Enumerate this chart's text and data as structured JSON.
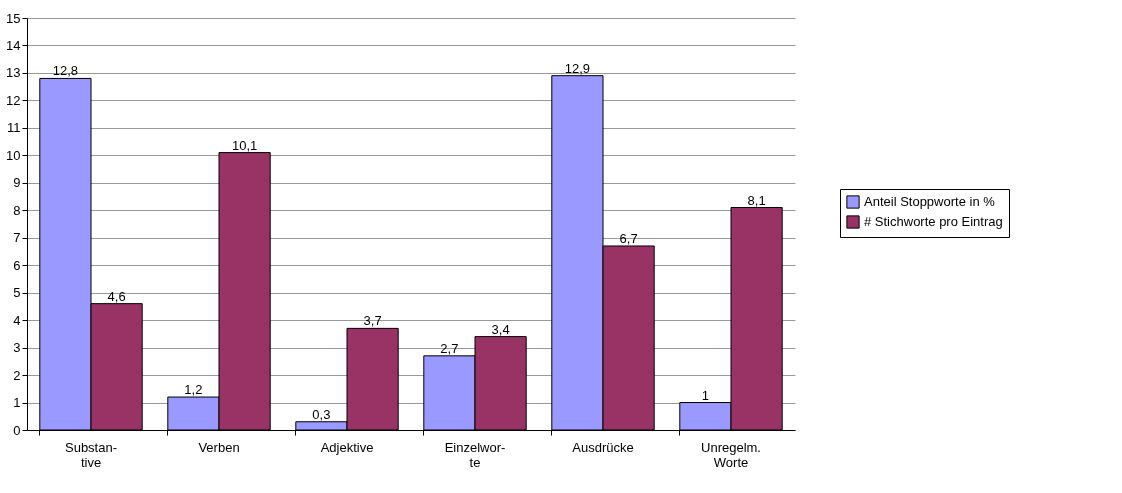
{
  "chart_data": {
    "type": "bar",
    "categories": [
      "Substan-\ntive",
      "Verben",
      "Adjektive",
      "Einzelwor-\nte",
      "Ausdrücke",
      "Unregelm.\nWorte"
    ],
    "series": [
      {
        "name": "Anteil Stoppworte in %",
        "color": "#9999ff",
        "values": [
          12.8,
          1.2,
          0.3,
          2.7,
          12.9,
          1
        ],
        "value_labels": [
          "12,8",
          "1,2",
          "0,3",
          "2,7",
          "12,9",
          "1"
        ]
      },
      {
        "name": "# Stichworte pro Eintrag",
        "color": "#993366",
        "values": [
          4.6,
          10.1,
          3.7,
          3.4,
          6.7,
          8.1
        ],
        "value_labels": [
          "4,6",
          "10,1",
          "3,7",
          "3,4",
          "6,7",
          "8,1"
        ]
      }
    ],
    "ylim": [
      0,
      15
    ],
    "yticks": [
      0,
      1,
      2,
      3,
      4,
      5,
      6,
      7,
      8,
      9,
      10,
      11,
      12,
      13,
      14,
      15
    ],
    "grid": "y",
    "legend": "right"
  }
}
